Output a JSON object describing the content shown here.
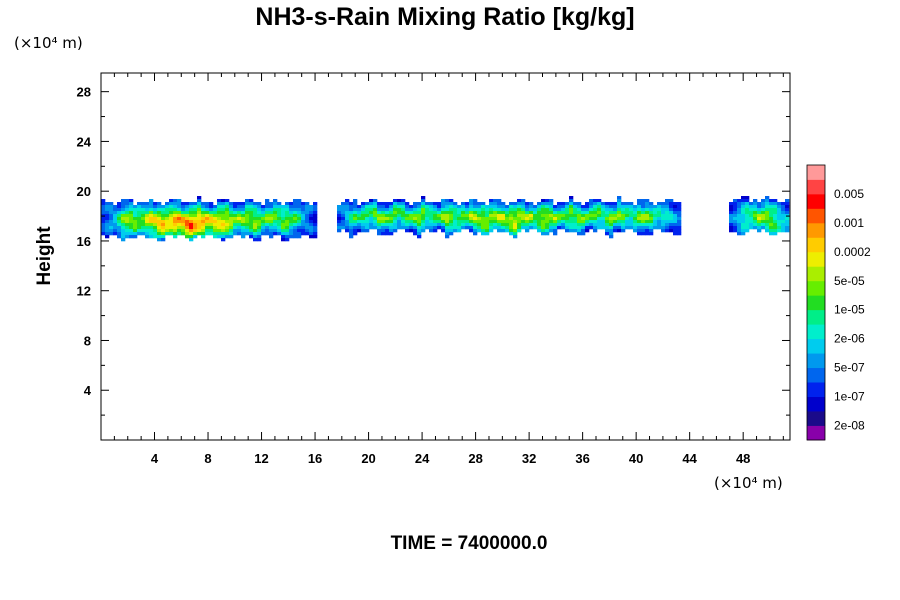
{
  "chart_data": {
    "type": "heatmap",
    "title": "NH3-s-Rain Mixing Ratio [kg/kg]",
    "xlabel": "",
    "ylabel": "Height",
    "x_unit": "(×10⁴ m)",
    "y_unit": "(×10⁴ m)",
    "xlim": [
      0,
      51.5
    ],
    "ylim": [
      0,
      29.5
    ],
    "x_ticks": [
      4,
      8,
      12,
      16,
      20,
      24,
      28,
      32,
      36,
      40,
      44,
      48
    ],
    "y_ticks": [
      4,
      8,
      12,
      16,
      20,
      24,
      28
    ],
    "legend_labels": [
      "0.005",
      "0.001",
      "0.0002",
      "5e-05",
      "1e-05",
      "2e-06",
      "5e-07",
      "1e-07",
      "2e-08"
    ],
    "levels": [
      "2e-08",
      "5e-08",
      "1e-07",
      "2e-07",
      "5e-07",
      "1e-06",
      "2e-06",
      "5e-06",
      "1e-05",
      "2e-05",
      "5e-05",
      "0.0001",
      "0.0002",
      "0.0005",
      "0.001",
      "0.002",
      "0.005",
      "0.01"
    ],
    "colors": [
      "#8800aa",
      "#1a0a8a",
      "#0000cc",
      "#0022ee",
      "#0066ee",
      "#0099ee",
      "#00ccee",
      "#00eecc",
      "#00ee88",
      "#22dd22",
      "#66ee00",
      "#aaee00",
      "#eeee00",
      "#ffcc00",
      "#ff9900",
      "#ff5500",
      "#ff0000",
      "#ff4444",
      "#ff9999"
    ],
    "bands": [
      {
        "name": "band-left",
        "x": [
          0,
          16
        ],
        "y_top": 19.6,
        "y_bottom": 15.8,
        "peak": 16,
        "peak_x": 6.5,
        "peak_y": 17.0
      },
      {
        "name": "band-middle",
        "x": [
          17.5,
          43.5
        ],
        "y_top": 19.6,
        "y_bottom": 16.2,
        "peak": 13,
        "peak_x": 30.5,
        "peak_y": 17.0
      },
      {
        "name": "band-right",
        "x": [
          47,
          51.5
        ],
        "y_top": 19.8,
        "y_bottom": 16.2,
        "peak": 13,
        "peak_x": 51.0,
        "peak_y": 17.0
      }
    ],
    "time_label": "TIME = 7400000.0"
  }
}
